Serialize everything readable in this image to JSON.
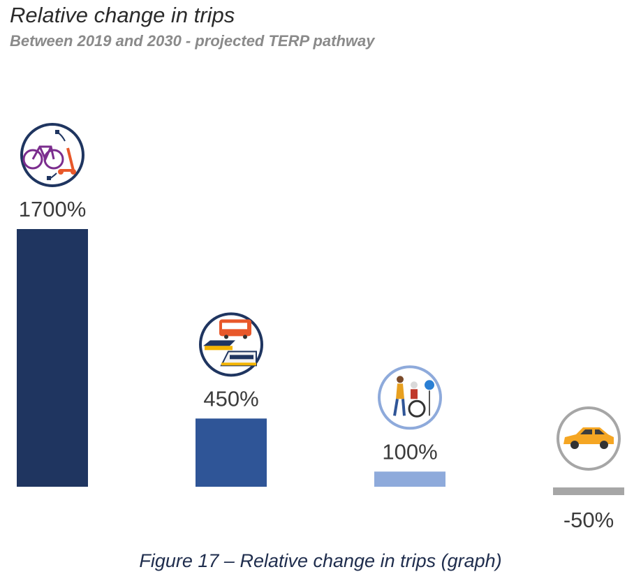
{
  "title": "Relative change in trips",
  "subtitle": "Between 2019 and 2030 - projected TERP pathway",
  "caption": "Figure 17 – Relative change in trips (graph)",
  "chart_data": {
    "type": "bar",
    "categories": [
      "",
      "",
      "",
      ""
    ],
    "values": [
      1700,
      450,
      100,
      -50
    ],
    "value_labels": [
      "1700%",
      "450%",
      "100%",
      "-50%"
    ],
    "bar_colors": [
      "#1f3560",
      "#2f5597",
      "#8eaadb",
      "#a6a6a6"
    ],
    "icons": [
      "bike-scooter-icon",
      "bus-ferry-train-icon",
      "walk-wheelchair-icon",
      "car-icon"
    ],
    "ring_colors": [
      "#1f3560",
      "#1f3560",
      "#8eaadb",
      "#a6a6a6"
    ],
    "ylim": [
      -50,
      1700
    ],
    "grid": false,
    "legend": "none"
  }
}
